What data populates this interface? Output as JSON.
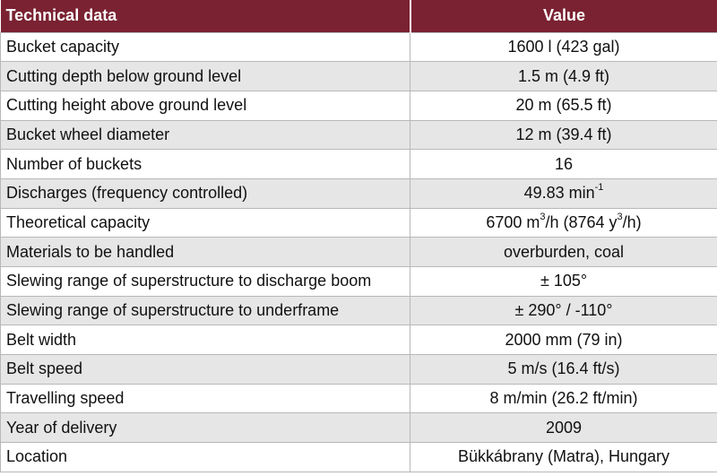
{
  "colors": {
    "header_bg": "#7a2232",
    "stripe": "#e6e6e6"
  },
  "table": {
    "headers": [
      "Technical data",
      "Value"
    ],
    "rows": [
      {
        "label": "Bucket capacity",
        "value": "1600 l (423 gal)"
      },
      {
        "label": "Cutting depth below ground level",
        "value": "1.5 m (4.9 ft)"
      },
      {
        "label": "Cutting height above ground level",
        "value": "20 m (65.5 ft)"
      },
      {
        "label": "Bucket wheel diameter",
        "value": "12 m (39.4 ft)"
      },
      {
        "label": "Number of buckets",
        "value": "16"
      },
      {
        "label": "Discharges (frequency controlled)",
        "value_parts": [
          "49.83 min",
          "-1",
          ""
        ]
      },
      {
        "label": "Theoretical capacity",
        "value_parts": [
          "6700 m",
          "3",
          "/h (8764 y",
          "3",
          "/h)"
        ]
      },
      {
        "label": "Materials to be handled",
        "value": "overburden, coal"
      },
      {
        "label": "Slewing range of superstructure to discharge boom",
        "value": "± 105°"
      },
      {
        "label": "Slewing range of superstructure to underframe",
        "value": "± 290° / -110°"
      },
      {
        "label": "Belt width",
        "value": "2000 mm (79 in)"
      },
      {
        "label": "Belt speed",
        "value": "5 m/s (16.4 ft/s)"
      },
      {
        "label": "Travelling speed",
        "value": "8 m/min (26.2 ft/min)"
      },
      {
        "label": "Year of delivery",
        "value": "2009"
      },
      {
        "label": "Location",
        "value": "Bükkábrany (Matra), Hungary"
      }
    ]
  }
}
